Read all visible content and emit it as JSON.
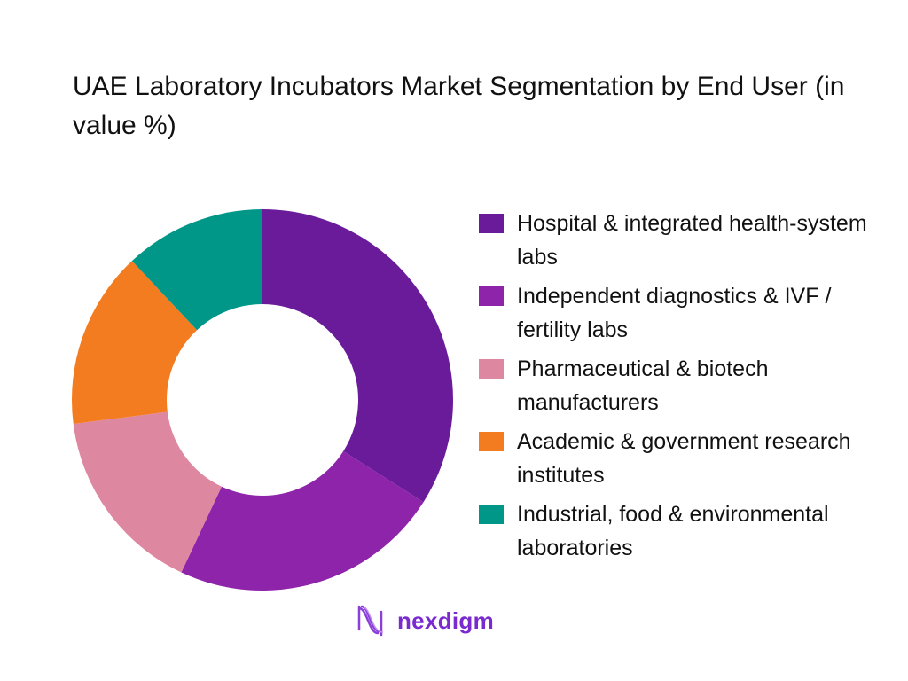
{
  "title": "UAE Laboratory Incubators Market Segmentation by End User (in value %)",
  "chart_data": {
    "type": "pie",
    "variant": "donut",
    "title": "UAE Laboratory Incubators Market Segmentation by End User (in value %)",
    "categories": [
      "Hospital & integrated health-system labs",
      "Independent diagnostics & IVF / fertility labs",
      "Pharmaceutical & biotech manufacturers",
      "Academic & government research institutes",
      "Industrial, food & environmental laboratories"
    ],
    "values": [
      34,
      23,
      16,
      15,
      12
    ],
    "colors": [
      "#6a1b9a",
      "#8e24aa",
      "#de87a0",
      "#f47c20",
      "#009688"
    ],
    "legend_position": "right",
    "start_angle": "top, clockwise"
  },
  "legend": [
    {
      "label": "Hospital & integrated health-system labs",
      "color": "#6a1b9a"
    },
    {
      "label": "Independent diagnostics & IVF / fertility labs",
      "color": "#8e24aa"
    },
    {
      "label": "Pharmaceutical & biotech manufacturers",
      "color": "#de87a0"
    },
    {
      "label": "Academic & government research institutes",
      "color": "#f47c20"
    },
    {
      "label": "Industrial, food & environmental laboratories",
      "color": "#009688"
    }
  ],
  "logo": {
    "text": "nexdigm"
  }
}
